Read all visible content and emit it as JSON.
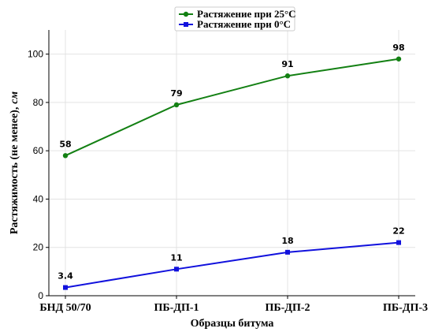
{
  "chart_data": {
    "type": "line",
    "title": "",
    "xlabel": "Образцы битума",
    "ylabel": "Растяжимость (не менее),",
    "ylabel_unit": "см",
    "categories": [
      "БНД 50/70",
      "ПБ-ДП-1",
      "ПБ-ДП-2",
      "ПБ-ДП-3"
    ],
    "ylim": [
      0,
      110
    ],
    "yticks": [
      0,
      20,
      40,
      60,
      80,
      100
    ],
    "grid": true,
    "legend_position": "top-center",
    "series": [
      {
        "name": "Растяжение при 25°С",
        "values": [
          58,
          79,
          91,
          98
        ],
        "labels": [
          "58",
          "79",
          "91",
          "98"
        ],
        "color": "#138013",
        "marker": "circle"
      },
      {
        "name": "Растяжение при 0°С",
        "values": [
          3.4,
          11,
          18,
          22
        ],
        "labels": [
          "3.4",
          "11",
          "18",
          "22"
        ],
        "color": "#1111dd",
        "marker": "square"
      }
    ]
  }
}
